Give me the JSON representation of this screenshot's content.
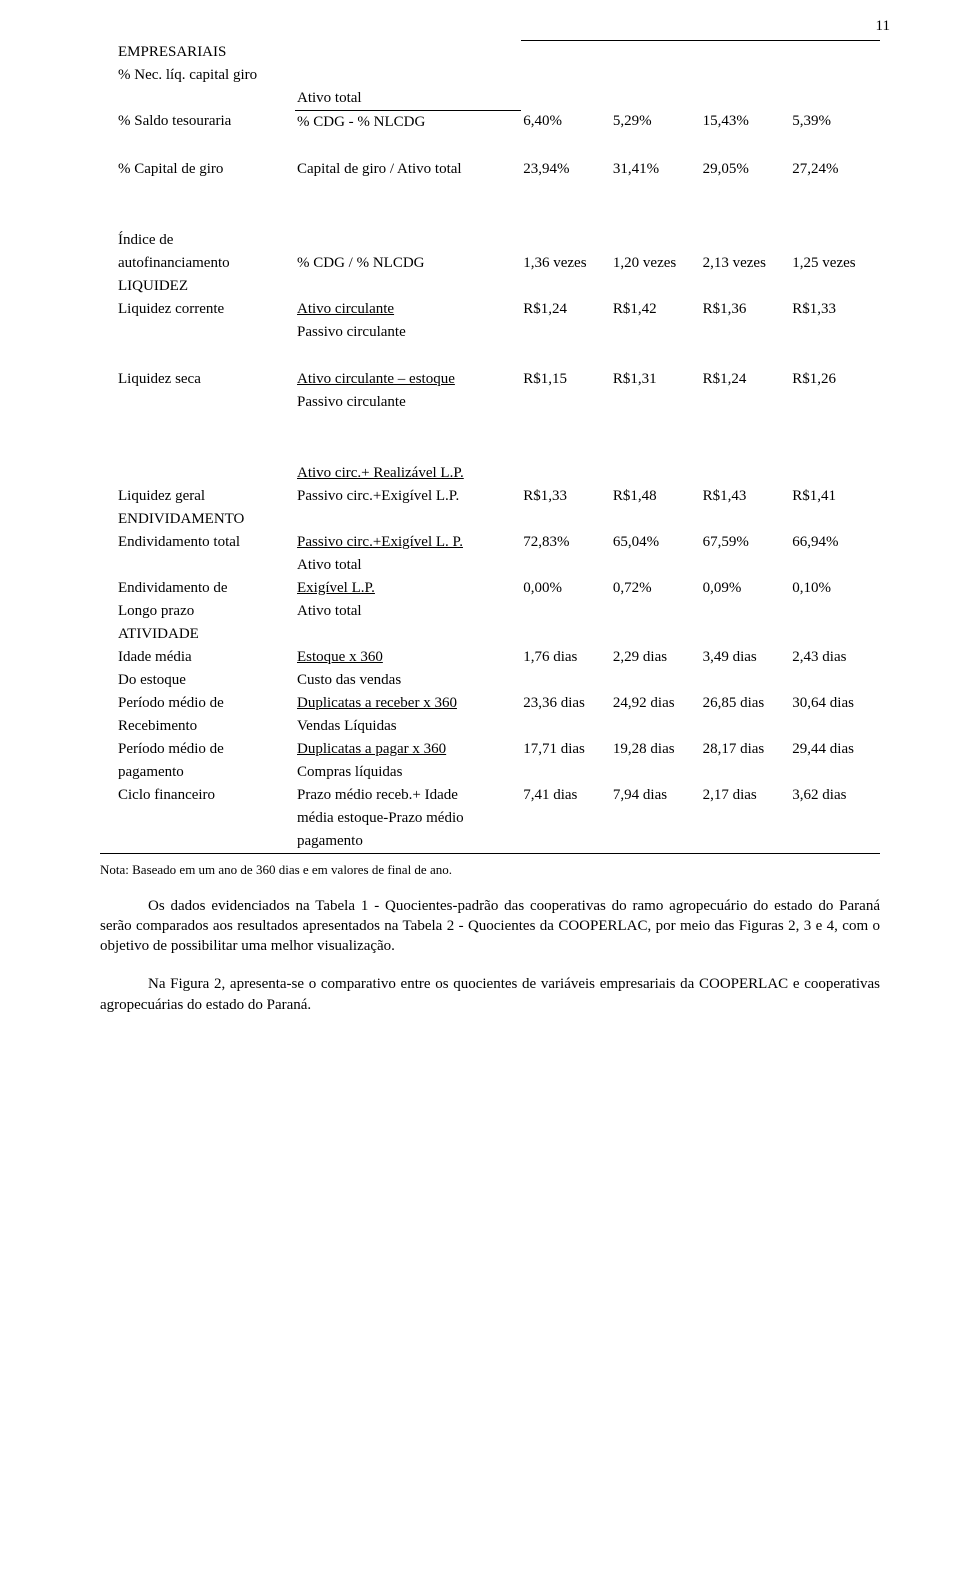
{
  "page_number": "11",
  "section_a": {
    "label_empresariais": "EMPRESARIAIS",
    "label_necliq": "% Nec. líq. capital giro",
    "formula_ativototal": "Ativo total",
    "label_saldo": "% Saldo tesouraria",
    "formula_saldo": "% CDG - % NLCDG",
    "vals_saldo": [
      "6,40%",
      "5,29%",
      "15,43%",
      "5,39%"
    ],
    "label_capital": "% Capital de giro",
    "formula_capital": "Capital de giro / Ativo total",
    "vals_capital": [
      "23,94%",
      "31,41%",
      "29,05%",
      "27,24%"
    ]
  },
  "section_liq": {
    "label_indice": "Índice de",
    "label_autofin": "autofinanciamento",
    "formula_autofin": "% CDG / % NLCDG",
    "vals_autofin": [
      "1,36 vezes",
      "1,20 vezes",
      "2,13 vezes",
      "1,25 vezes"
    ],
    "label_liquidez": "LIQUIDEZ",
    "label_corrente": "Liquidez corrente",
    "formula_corrente_num": "Ativo circulante",
    "formula_corrente_den": "Passivo circulante",
    "vals_corrente": [
      "R$1,24",
      "R$1,42",
      "R$1,36",
      "R$1,33"
    ],
    "label_seca": "Liquidez seca",
    "formula_seca_num": "Ativo circulante – estoque",
    "formula_seca_den": "Passivo circulante",
    "vals_seca": [
      "R$1,15",
      "R$1,31",
      "R$1,24",
      "R$1,26"
    ],
    "formula_geral_num": "Ativo circ.+ Realizável L.P.",
    "label_geral": "Liquidez geral",
    "formula_geral_den": "Passivo circ.+Exigível L.P.",
    "vals_geral": [
      "R$1,33",
      "R$1,48",
      "R$1,43",
      "R$1,41"
    ]
  },
  "section_end": {
    "label_endiv": "ENDIVIDAMENTO",
    "label_total": "Endividamento total",
    "formula_total_num": "Passivo circ.+Exigível L. P.",
    "formula_total_den": "Ativo total",
    "vals_total": [
      "72,83%",
      "65,04%",
      "67,59%",
      "66,94%"
    ],
    "label_de": "Endividamento de",
    "label_longo": "Longo prazo",
    "formula_de_num": "Exigível L.P.",
    "formula_de_den": "Ativo total",
    "vals_de": [
      "0,00%",
      "0,72%",
      "0,09%",
      "0,10%"
    ]
  },
  "section_ativ": {
    "label_atividade": "ATIVIDADE",
    "label_idade": "Idade média",
    "label_doestoque": "Do estoque",
    "formula_idade_num": "Estoque x 360",
    "formula_idade_den": "Custo das vendas",
    "vals_idade": [
      "1,76 dias",
      "2,29 dias",
      "3,49 dias",
      "2,43 dias"
    ],
    "label_pmr1": "Período médio de",
    "label_pmr2": "Recebimento",
    "formula_pmr_num": "Duplicatas a receber x 360",
    "formula_pmr_den": "Vendas Líquidas",
    "vals_pmr": [
      "23,36 dias",
      "24,92 dias",
      "26,85 dias",
      "30,64 dias"
    ],
    "label_pmp1": "Período médio de",
    "label_pmp2": "pagamento",
    "formula_pmp_num": "Duplicatas a pagar x 360",
    "formula_pmp_den": "Compras líquidas",
    "vals_pmp": [
      "17,71 dias",
      "19,28 dias",
      "28,17 dias",
      "29,44 dias"
    ],
    "label_ciclo": "Ciclo financeiro",
    "formula_ciclo_l1": "Prazo médio receb.+ Idade",
    "formula_ciclo_l2": "média estoque-Prazo médio",
    "formula_ciclo_l3": "pagamento",
    "vals_ciclo": [
      "7,41 dias",
      "7,94 dias",
      "2,17 dias",
      "3,62 dias"
    ]
  },
  "note": "Nota: Baseado em um ano de 360 dias  e em valores de final de ano.",
  "para1": "Os dados evidenciados na Tabela 1 - Quocientes-padrão das cooperativas do ramo agropecuário do estado do Paraná serão comparados aos resultados apresentados na Tabela 2 - Quocientes da COOPERLAC, por meio das Figuras 2, 3 e 4, com o objetivo de possibilitar uma melhor visualização.",
  "para2": "Na Figura 2, apresenta-se o comparativo entre os quocientes de variáveis empresariais da COOPERLAC e cooperativas agropecuárias do estado do Paraná."
}
